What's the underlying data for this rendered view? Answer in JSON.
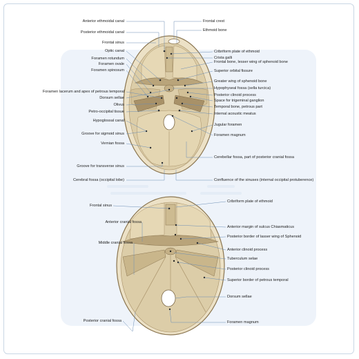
{
  "colors": {
    "bone": "#d9caa5",
    "bone_light": "#ece1c6",
    "bone_dark": "#b9a47a",
    "outline": "#8a7550",
    "leader": "#6a8db5",
    "panel": "#eef3fa",
    "frame": "#c9d6e4"
  },
  "top": {
    "labels": {
      "anterior_ethmoidal_canal": "Anterior ethmoidal canal",
      "posterior_ethmoidal_canal": "Posterior ethmoidal canal",
      "frontal_sinus": "Frontal sinus",
      "optic_canal": "Optic canal",
      "foramen_rotundum": "Foramen rotundum",
      "foramen_ovale": "Foramen ovale",
      "foramen_spinosum": "Foramen spinosum",
      "foramen_lacerum": "Foramen lacerum and apex of petrous temporal",
      "dorsum_sellae": "Dorsum sellae",
      "olivus": "Olivus",
      "petro_occipital": "Petro-occipital tissue",
      "hypoglossal_canal": "Hypoglossal canal",
      "groove_sigmoid": "Groove for sigmoid sinus",
      "vernian_fossa": "Vernian fossa",
      "groove_transverse": "Groove for transverse sinus",
      "cerebral_fossa": "Cerebral fossa (occipital lobe)",
      "frontal_crest": "Frontal crest",
      "ethmoid_bone": "Ethmoid bone",
      "cribriform": "Cribriform plate of ethmoid",
      "crista_galli": "Crista galli",
      "frontal_lesser_wing": "Frontal bone, lesser wing of sphenoid bone",
      "superior_orbital": "Superior orbital fissure",
      "greater_wing": "Greater wing of sphenoid bone",
      "hypophyseal": "Hypophyseal fossa (sella turcica)",
      "posterior_clinoid": "Posterior clinoid process",
      "trigeminal": "Space for trigeminal ganglion",
      "temporal_petrous": "Temporal bone, petrous part",
      "internal_acoustic": "Internal acoustic meatus",
      "jugular": "Jugular foramen",
      "foramen_magnum": "Foramen magnum",
      "cerebellar_fossa": "Cerebellar fossa, part of posterior cranial fossa",
      "confluence": "Confluence of the sinuses (internal occipital protuberence)"
    }
  },
  "bottom": {
    "labels": {
      "frontal_sinus": "Frontal sinus",
      "anterior_cranial_fossa": "Anterior cranial fossa",
      "middle_cranial_fossa": "Middle cranial fossa",
      "posterior_cranial_fossa": "Posterior cranial fossa",
      "cribriform": "Cribriform plate of ethmoid",
      "anterior_margin": "Anterior margin of sulcus Chiasmaticus",
      "posterior_border_lesser": "Posterior border of lasser wing of Sphenoid",
      "anterior_clinoid": "Anterior clinoid process",
      "tuberculum": "Tuberculum selae",
      "posterior_clinoid": "Posterior clinoid process",
      "superior_border": "Superior border of petrous temporal",
      "dorsum_sellae": "Dorsum sellae",
      "foramen_magnum": "Foramen magnum"
    }
  }
}
